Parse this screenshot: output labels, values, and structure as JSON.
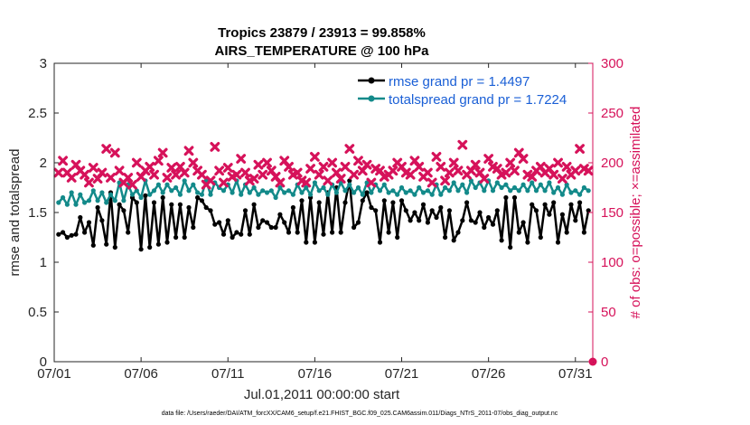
{
  "chart_data": {
    "type": "line",
    "title": [
      "Tropics 23879 / 23913 = 99.858%",
      "AIRS_TEMPERATURE @ 100 hPa"
    ],
    "xlabel": "Jul.01,2011 00:00:00 start",
    "ylabel": "rmse and totalspread",
    "ylabel_right": "# of obs: o=possible; ×=assimilated",
    "footnote": "data file: /Users/raeder/DAI/ATM_forcXX/CAM6_setup/f.e21.FHIST_BGC.f09_025.CAM6assim.011/Diags_NTrS_2011-07/obs_diag_output.nc",
    "xlim": [
      0,
      31
    ],
    "ylim": [
      0,
      3
    ],
    "ylim_right": [
      0,
      300
    ],
    "xticks": [
      0,
      5,
      10,
      15,
      20,
      25,
      30
    ],
    "xtick_labels": [
      "07/01",
      "07/06",
      "07/11",
      "07/16",
      "07/21",
      "07/26",
      "07/31"
    ],
    "yticks": [
      0,
      0.5,
      1,
      1.5,
      2,
      2.5,
      3
    ],
    "ytick_labels": [
      "0",
      "0.5",
      "1",
      "1.5",
      "2",
      "2.5",
      "3"
    ],
    "yticks_right": [
      0,
      50,
      100,
      150,
      200,
      250,
      300
    ],
    "ytick_labels_right": [
      "0",
      "50",
      "100",
      "150",
      "200",
      "250",
      "300"
    ],
    "legend": [
      "rmse grand pr = 1.4497",
      "totalspread grand pr = 1.7224"
    ],
    "legend_position": "top-right",
    "x_start": 0.25,
    "x_step": 0.25,
    "series": [
      {
        "name": "rmse",
        "color": "#000000",
        "marker": "dot",
        "values": [
          1.28,
          1.3,
          1.25,
          1.27,
          1.28,
          1.45,
          1.3,
          1.4,
          1.17,
          1.55,
          1.42,
          1.18,
          1.7,
          1.15,
          1.58,
          1.52,
          1.3,
          1.65,
          1.6,
          1.13,
          1.67,
          1.15,
          1.6,
          1.18,
          1.65,
          1.2,
          1.58,
          1.25,
          1.58,
          1.25,
          1.55,
          1.35,
          1.65,
          1.62,
          1.55,
          1.52,
          1.38,
          1.4,
          1.28,
          1.42,
          1.25,
          1.3,
          1.28,
          1.52,
          1.28,
          1.58,
          1.35,
          1.42,
          1.4,
          1.35,
          1.35,
          1.48,
          1.4,
          1.3,
          1.55,
          1.3,
          1.62,
          1.2,
          1.65,
          1.2,
          1.6,
          1.28,
          1.7,
          1.3,
          1.75,
          1.3,
          1.6,
          1.82,
          1.35,
          1.4,
          1.62,
          1.7,
          1.55,
          1.52,
          1.2,
          1.62,
          1.3,
          1.6,
          1.25,
          1.62,
          1.52,
          1.42,
          1.5,
          1.42,
          1.58,
          1.4,
          1.52,
          1.45,
          1.55,
          1.25,
          1.52,
          1.22,
          1.3,
          1.42,
          1.6,
          1.42,
          1.4,
          1.5,
          1.35,
          1.45,
          1.38,
          1.52,
          1.22,
          1.65,
          1.15,
          1.65,
          1.3,
          1.4,
          1.2,
          1.58,
          1.52,
          1.25,
          1.58,
          1.48,
          1.6,
          1.2,
          1.48,
          1.3,
          1.58,
          1.42,
          1.6,
          1.3,
          1.52
        ]
      },
      {
        "name": "totalspread",
        "color": "#138a8a",
        "marker": "dot",
        "values": [
          1.6,
          1.65,
          1.58,
          1.7,
          1.58,
          1.68,
          1.6,
          1.62,
          1.72,
          1.62,
          1.7,
          1.6,
          1.68,
          1.62,
          1.8,
          1.62,
          1.78,
          1.68,
          1.72,
          1.65,
          1.82,
          1.68,
          1.72,
          1.78,
          1.7,
          1.78,
          1.72,
          1.75,
          1.68,
          1.82,
          1.72,
          1.78,
          1.7,
          1.68,
          1.82,
          1.68,
          1.8,
          1.75,
          1.72,
          1.78,
          1.7,
          1.82,
          1.68,
          1.78,
          1.7,
          1.75,
          1.68,
          1.72,
          1.7,
          1.72,
          1.65,
          1.75,
          1.7,
          1.72,
          1.68,
          1.78,
          1.7,
          1.75,
          1.68,
          1.8,
          1.72,
          1.75,
          1.68,
          1.78,
          1.7,
          1.8,
          1.72,
          1.78,
          1.7,
          1.75,
          1.68,
          1.8,
          1.7,
          1.78,
          1.72,
          1.78,
          1.7,
          1.72,
          1.68,
          1.75,
          1.7,
          1.72,
          1.68,
          1.75,
          1.7,
          1.72,
          1.68,
          1.78,
          1.68,
          1.75,
          1.72,
          1.8,
          1.72,
          1.78,
          1.7,
          1.82,
          1.75,
          1.8,
          1.72,
          1.82,
          1.72,
          1.8,
          1.75,
          1.78,
          1.72,
          1.75,
          1.72,
          1.78,
          1.72,
          1.8,
          1.72,
          1.78,
          1.72,
          1.8,
          1.7,
          1.75,
          1.68,
          1.78,
          1.7,
          1.72,
          1.68,
          1.75,
          1.72
        ]
      },
      {
        "name": "# of obs assimilated",
        "color": "#d6125a",
        "marker": "x",
        "axis": "right",
        "values": [
          190,
          202,
          190,
          185,
          198,
          192,
          188,
          180,
          195,
          184,
          190,
          214,
          185,
          210,
          192,
          180,
          185,
          178,
          200,
          186,
          192,
          196,
          188,
          202,
          210,
          185,
          195,
          188,
          196,
          190,
          212,
          200,
          192,
          188,
          178,
          182,
          216,
          192,
          180,
          195,
          186,
          188,
          204,
          190,
          182,
          184,
          198,
          188,
          200,
          192,
          186,
          180,
          202,
          196,
          188,
          190,
          182,
          180,
          194,
          206,
          188,
          196,
          182,
          200,
          190,
          184,
          196,
          214,
          188,
          202,
          192,
          198,
          180,
          194,
          192,
          186,
          188,
          192,
          200,
          196,
          190,
          188,
          202,
          196,
          186,
          190,
          180,
          206,
          196,
          182,
          190,
          200,
          192,
          218,
          188,
          192,
          198,
          190,
          184,
          204,
          196,
          194,
          188,
          190,
          200,
          192,
          210,
          204,
          188,
          186,
          192,
          196,
          190,
          194,
          188,
          200,
          184,
          196,
          188,
          192,
          214,
          194,
          192
        ]
      },
      {
        "name": "# of obs possible",
        "color": "#d6125a",
        "marker": "o",
        "axis": "right",
        "note": "marker visible at x = 31 (plot edge) at value 0",
        "x": [
          31
        ],
        "values": [
          0
        ]
      }
    ]
  }
}
